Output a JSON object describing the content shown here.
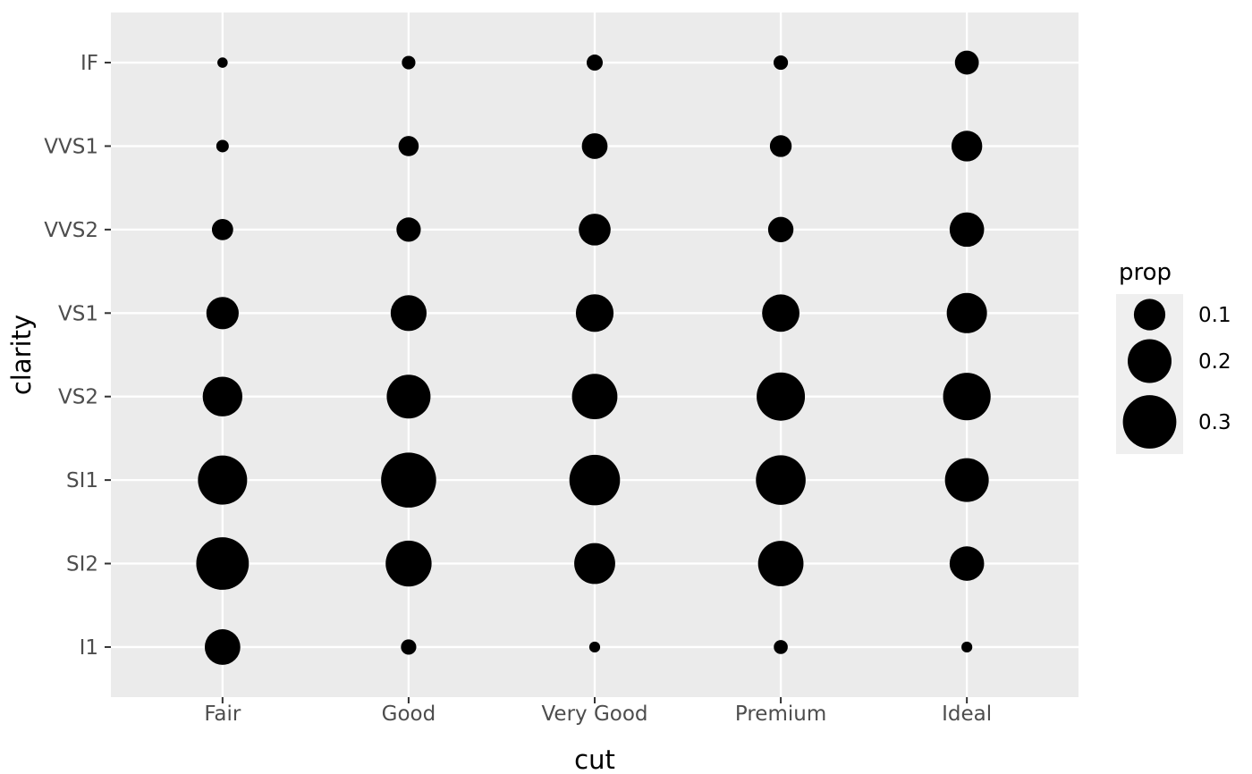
{
  "figure": {
    "background": "#FFFFFF",
    "panel_bg": "#EBEBEB",
    "grid_color": "#FFFFFF",
    "point_color": "#000000",
    "axis_text_color": "#4D4D4D",
    "axis_title_color": "#000000",
    "tick_color": "#333333",
    "legend_key_bg": "#EFEFEF"
  },
  "chart_data": {
    "type": "scatter",
    "subtype": "bubble",
    "title": "",
    "xlabel": "cut",
    "ylabel": "clarity",
    "grid": true,
    "legend_position": "right",
    "x_categories": [
      "Fair",
      "Good",
      "Very Good",
      "Premium",
      "Ideal"
    ],
    "y_categories_top_to_bottom": [
      "IF",
      "VVS1",
      "VVS2",
      "VS1",
      "VS2",
      "SI1",
      "SI2",
      "I1"
    ],
    "size_variable": "prop",
    "series": [
      {
        "clarity": "IF",
        "props": [
          0.006,
          0.014,
          0.022,
          0.017,
          0.056
        ]
      },
      {
        "clarity": "VVS1",
        "props": [
          0.011,
          0.038,
          0.065,
          0.045,
          0.095
        ]
      },
      {
        "clarity": "VVS2",
        "props": [
          0.043,
          0.058,
          0.102,
          0.063,
          0.121
        ]
      },
      {
        "clarity": "VS1",
        "props": [
          0.106,
          0.132,
          0.147,
          0.144,
          0.167
        ]
      },
      {
        "clarity": "VS2",
        "props": [
          0.162,
          0.199,
          0.214,
          0.243,
          0.235
        ]
      },
      {
        "clarity": "SI1",
        "props": [
          0.253,
          0.318,
          0.268,
          0.259,
          0.199
        ]
      },
      {
        "clarity": "SI2",
        "props": [
          0.289,
          0.22,
          0.174,
          0.214,
          0.121
        ]
      },
      {
        "clarity": "I1",
        "props": [
          0.13,
          0.02,
          0.007,
          0.015,
          0.007
        ]
      }
    ],
    "legend": {
      "title": "prop",
      "entries": [
        "0.1",
        "0.2",
        "0.3"
      ],
      "entry_values": [
        0.1,
        0.2,
        0.3
      ]
    },
    "size_scale_calibration": {
      "radius_px_formula": "sqrt(area_intercept + area_slope * prop)",
      "area_intercept": 16.1,
      "area_slope": 2932
    }
  }
}
